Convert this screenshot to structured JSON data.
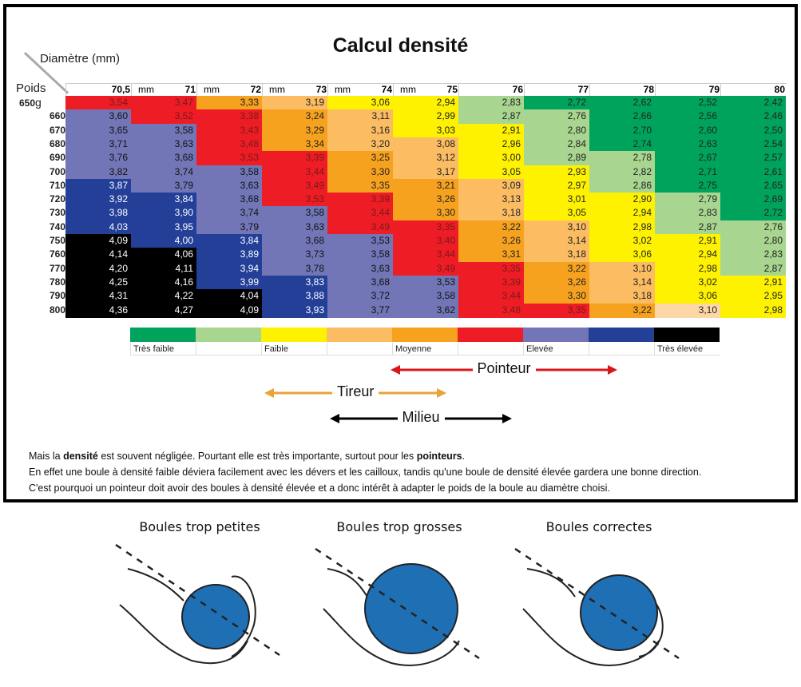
{
  "title": "Calcul densité",
  "axis_labels": {
    "diameter": "Diamètre (mm)",
    "weight": "Poids"
  },
  "weight_unit": "g",
  "diameter_unit": "mm",
  "colors": {
    "0": "#00a35c",
    "1": "#a8d58f",
    "2": "#fff200",
    "3": "#fbbc62",
    "4": "#f7a21f",
    "5": "#ee1c25",
    "6": "#7276b6",
    "7": "#233f98",
    "8": "#000000",
    "9": "#fdd7a6"
  },
  "chart_data": {
    "type": "heatmap",
    "title": "Calcul densité",
    "xlabel": "Diamètre (mm)",
    "ylabel": "Poids",
    "columns": [
      {
        "label": "70,5",
        "unit": "mm"
      },
      {
        "label": "71",
        "unit": "mm"
      },
      {
        "label": "72",
        "unit": "mm"
      },
      {
        "label": "73",
        "unit": "mm"
      },
      {
        "label": "74",
        "unit": "mm"
      },
      {
        "label": "75",
        "unit": ""
      },
      {
        "label": "76",
        "unit": ""
      },
      {
        "label": "77",
        "unit": ""
      },
      {
        "label": "78",
        "unit": ""
      },
      {
        "label": "79",
        "unit": ""
      },
      {
        "label": "80",
        "unit": ""
      }
    ],
    "rows": [
      {
        "weight": "650",
        "values": [
          "3,54",
          "3,47",
          "3,33",
          "3,19",
          "3,06",
          "2,94",
          "2,83",
          "2,72",
          "2,62",
          "2,52",
          "2,42"
        ],
        "classes": [
          5,
          5,
          4,
          3,
          2,
          2,
          1,
          0,
          0,
          0,
          0
        ]
      },
      {
        "weight": "660",
        "values": [
          "3,60",
          "3,52",
          "3,38",
          "3,24",
          "3,11",
          "2,99",
          "2,87",
          "2,76",
          "2,66",
          "2,56",
          "2,46"
        ],
        "classes": [
          6,
          5,
          5,
          4,
          3,
          2,
          1,
          1,
          0,
          0,
          0
        ]
      },
      {
        "weight": "670",
        "values": [
          "3,65",
          "3,58",
          "3,43",
          "3,29",
          "3,16",
          "3,03",
          "2,91",
          "2,80",
          "2,70",
          "2,60",
          "2,50"
        ],
        "classes": [
          6,
          6,
          5,
          4,
          3,
          2,
          2,
          1,
          0,
          0,
          0
        ]
      },
      {
        "weight": "680",
        "values": [
          "3,71",
          "3,63",
          "3,48",
          "3,34",
          "3,20",
          "3,08",
          "2,96",
          "2,84",
          "2,74",
          "2,63",
          "2,54"
        ],
        "classes": [
          6,
          6,
          5,
          4,
          3,
          3,
          2,
          1,
          0,
          0,
          0
        ]
      },
      {
        "weight": "690",
        "values": [
          "3,76",
          "3,68",
          "3,53",
          "3,39",
          "3,25",
          "3,12",
          "3,00",
          "2,89",
          "2,78",
          "2,67",
          "2,57"
        ],
        "classes": [
          6,
          6,
          5,
          5,
          4,
          3,
          2,
          1,
          1,
          0,
          0
        ]
      },
      {
        "weight": "700",
        "values": [
          "3,82",
          "3,74",
          "3,58",
          "3,44",
          "3,30",
          "3,17",
          "3,05",
          "2,93",
          "2,82",
          "2,71",
          "2,61"
        ],
        "classes": [
          6,
          6,
          6,
          5,
          4,
          3,
          2,
          2,
          1,
          0,
          0
        ]
      },
      {
        "weight": "710",
        "values": [
          "3,87",
          "3,79",
          "3,63",
          "3,49",
          "3,35",
          "3,21",
          "3,09",
          "2,97",
          "2,86",
          "2,75",
          "2,65"
        ],
        "classes": [
          7,
          6,
          6,
          5,
          4,
          4,
          3,
          2,
          1,
          0,
          0
        ]
      },
      {
        "weight": "720",
        "values": [
          "3,92",
          "3,84",
          "3,68",
          "3,53",
          "3,39",
          "3,26",
          "3,13",
          "3,01",
          "2,90",
          "2,79",
          "2,69"
        ],
        "classes": [
          7,
          7,
          6,
          5,
          5,
          4,
          3,
          2,
          2,
          1,
          0
        ]
      },
      {
        "weight": "730",
        "values": [
          "3,98",
          "3,90",
          "3,74",
          "3,58",
          "3,44",
          "3,30",
          "3,18",
          "3,05",
          "2,94",
          "2,83",
          "2,72"
        ],
        "classes": [
          7,
          7,
          6,
          6,
          5,
          4,
          3,
          2,
          2,
          1,
          0
        ]
      },
      {
        "weight": "740",
        "values": [
          "4,03",
          "3,95",
          "3,79",
          "3,63",
          "3,49",
          "3,35",
          "3,22",
          "3,10",
          "2,98",
          "2,87",
          "2,76"
        ],
        "classes": [
          7,
          7,
          6,
          6,
          5,
          5,
          4,
          3,
          2,
          1,
          1
        ]
      },
      {
        "weight": "750",
        "values": [
          "4,09",
          "4,00",
          "3,84",
          "3,68",
          "3,53",
          "3,40",
          "3,26",
          "3,14",
          "3,02",
          "2,91",
          "2,80"
        ],
        "classes": [
          8,
          7,
          7,
          6,
          6,
          5,
          4,
          3,
          2,
          2,
          1
        ]
      },
      {
        "weight": "760",
        "values": [
          "4,14",
          "4,06",
          "3,89",
          "3,73",
          "3,58",
          "3,44",
          "3,31",
          "3,18",
          "3,06",
          "2,94",
          "2,83"
        ],
        "classes": [
          8,
          8,
          7,
          6,
          6,
          5,
          4,
          3,
          2,
          2,
          1
        ]
      },
      {
        "weight": "770",
        "values": [
          "4,20",
          "4,11",
          "3,94",
          "3,78",
          "3,63",
          "3,49",
          "3,35",
          "3,22",
          "3,10",
          "2,98",
          "2,87"
        ],
        "classes": [
          8,
          8,
          7,
          6,
          6,
          5,
          5,
          4,
          3,
          2,
          1
        ]
      },
      {
        "weight": "780",
        "values": [
          "4,25",
          "4,16",
          "3,99",
          "3,83",
          "3,68",
          "3,53",
          "3,39",
          "3,26",
          "3,14",
          "3,02",
          "2,91"
        ],
        "classes": [
          8,
          8,
          7,
          7,
          6,
          6,
          5,
          4,
          3,
          2,
          2
        ]
      },
      {
        "weight": "790",
        "values": [
          "4,31",
          "4,22",
          "4,04",
          "3,88",
          "3,72",
          "3,58",
          "3,44",
          "3,30",
          "3,18",
          "3,06",
          "2,95"
        ],
        "classes": [
          8,
          8,
          8,
          7,
          6,
          6,
          5,
          4,
          3,
          2,
          2
        ]
      },
      {
        "weight": "800",
        "values": [
          "4,36",
          "4,27",
          "4,09",
          "3,93",
          "3,77",
          "3,62",
          "3,48",
          "3,35",
          "3,22",
          "3,10",
          "2,98"
        ],
        "classes": [
          8,
          8,
          8,
          7,
          6,
          6,
          5,
          5,
          4,
          9,
          2
        ]
      }
    ],
    "legend": [
      {
        "class": 0,
        "label": "Très faible"
      },
      {
        "class": 1,
        "label": ""
      },
      {
        "class": 2,
        "label": "Faible"
      },
      {
        "class": 3,
        "label": ""
      },
      {
        "class": 4,
        "label": "Moyenne"
      },
      {
        "class": 5,
        "label": ""
      },
      {
        "class": 6,
        "label": "Elevée"
      },
      {
        "class": 7,
        "label": ""
      },
      {
        "class": 8,
        "label": "Très élevée"
      }
    ]
  },
  "ranges": [
    {
      "label": "Pointeur",
      "color": "#d9161c",
      "from_class": 4,
      "to_class": 7
    },
    {
      "label": "Tireur",
      "color": "#e8a33a",
      "from_class": 2,
      "to_class": 4
    },
    {
      "label": "Milieu",
      "color": "#000000",
      "from_class": 3,
      "to_class": 5
    }
  ],
  "notes": {
    "line1_pre": "Mais la ",
    "line1_bold1": "densité",
    "line1_mid": " est souvent négligée.  Pourtant elle est très importante, surtout pour les ",
    "line1_bold2": "pointeurs",
    "line1_end": ".",
    "line2": "En effet une boule à densité faible déviera facilement avec les dévers et les cailloux, tandis qu'une boule de densité élevée gardera une bonne direction.",
    "line3": "C'est pourquoi un pointeur doit avoir des boules à densité élevée et a donc intérêt à adapter le poids de la boule au diamètre choisi."
  },
  "illustrations": [
    {
      "caption": "Boules trop petites",
      "ball_color": "#1f6fb5"
    },
    {
      "caption": "Boules trop grosses",
      "ball_color": "#1f6fb5"
    },
    {
      "caption": "Boules correctes",
      "ball_color": "#1f6fb5"
    }
  ]
}
